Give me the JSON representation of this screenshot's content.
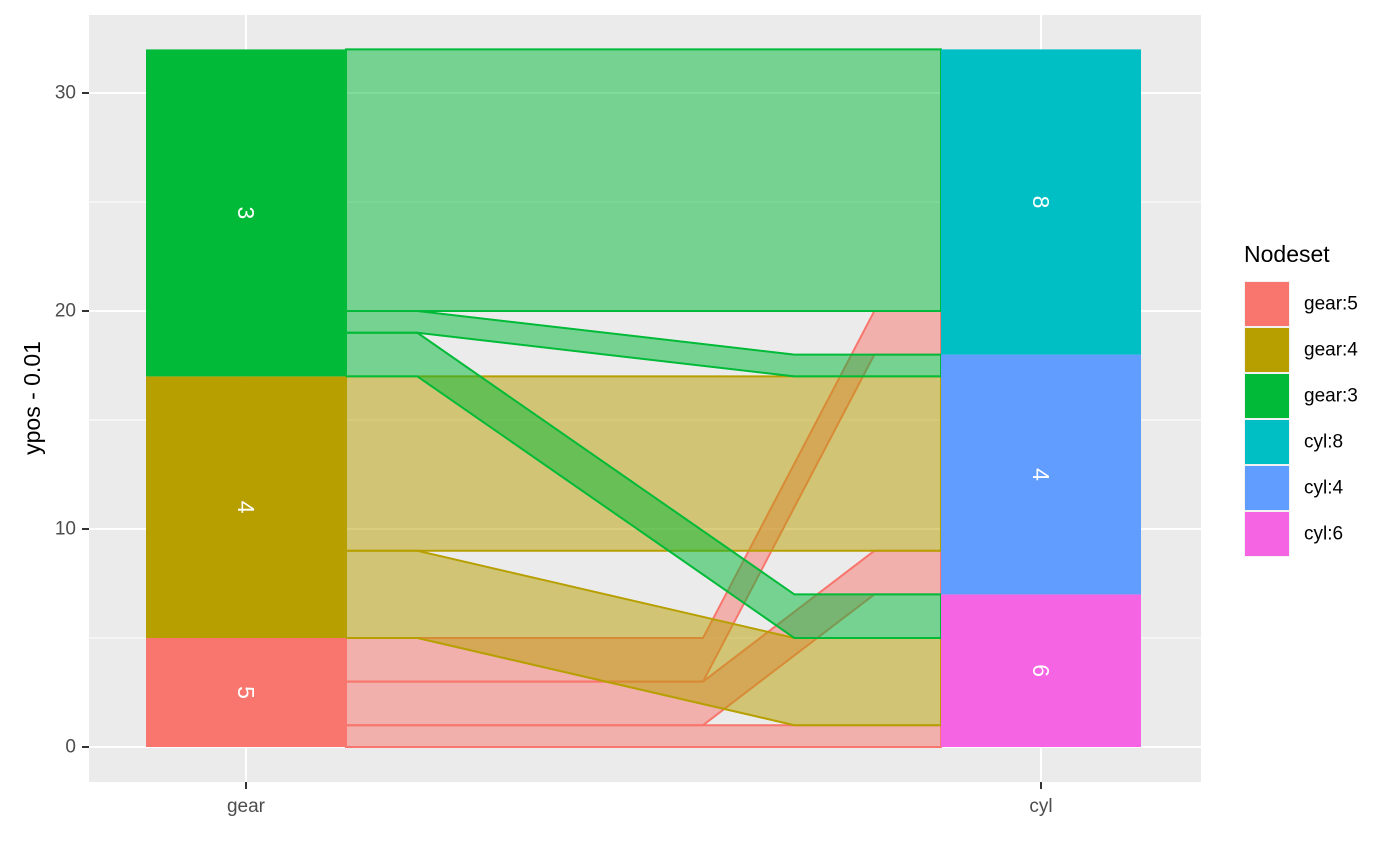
{
  "chart_data": {
    "type": "alluvial",
    "xlabel": "",
    "ylabel": "ypos - 0.01",
    "axes": [
      "gear",
      "cyl"
    ],
    "ylim": [
      -0.6,
      32.6
    ],
    "yticks": [
      0,
      10,
      20,
      30
    ],
    "grid": true,
    "legend": {
      "title": "Nodeset",
      "placement": "right",
      "entries": [
        {
          "label": "gear:5",
          "color": "#F8766D"
        },
        {
          "label": "gear:4",
          "color": "#B79F00"
        },
        {
          "label": "gear:3",
          "color": "#00BA38"
        },
        {
          "label": "cyl:8",
          "color": "#00BFC4"
        },
        {
          "label": "cyl:4",
          "color": "#619CFF"
        },
        {
          "label": "cyl:6",
          "color": "#F564E3"
        }
      ]
    },
    "nodes": [
      {
        "axis": "gear",
        "label": "5",
        "nodeset": "gear:5",
        "ymin": 0,
        "ymax": 5,
        "color": "#F8766D"
      },
      {
        "axis": "gear",
        "label": "4",
        "nodeset": "gear:4",
        "ymin": 5,
        "ymax": 17,
        "color": "#B79F00"
      },
      {
        "axis": "gear",
        "label": "3",
        "nodeset": "gear:3",
        "ymin": 17,
        "ymax": 32,
        "color": "#00BA38"
      },
      {
        "axis": "cyl",
        "label": "6",
        "nodeset": "cyl:6",
        "ymin": 0,
        "ymax": 7,
        "color": "#F564E3"
      },
      {
        "axis": "cyl",
        "label": "4",
        "nodeset": "cyl:4",
        "ymin": 7,
        "ymax": 18,
        "color": "#619CFF"
      },
      {
        "axis": "cyl",
        "label": "8",
        "nodeset": "cyl:8",
        "ymin": 18,
        "ymax": 32,
        "color": "#00BFC4"
      }
    ],
    "flows": [
      {
        "from": "gear:5",
        "to": "cyl:6",
        "value": 1,
        "from_y": [
          0,
          1
        ],
        "to_y": [
          0,
          1
        ]
      },
      {
        "from": "gear:5",
        "to": "cyl:4",
        "value": 2,
        "from_y": [
          1,
          3
        ],
        "to_y": [
          7,
          9
        ]
      },
      {
        "from": "gear:5",
        "to": "cyl:8",
        "value": 2,
        "from_y": [
          3,
          5
        ],
        "to_y": [
          18,
          20
        ]
      },
      {
        "from": "gear:4",
        "to": "cyl:6",
        "value": 4,
        "from_y": [
          5,
          9
        ],
        "to_y": [
          1,
          5
        ]
      },
      {
        "from": "gear:4",
        "to": "cyl:4",
        "value": 8,
        "from_y": [
          9,
          17
        ],
        "to_y": [
          9,
          17
        ]
      },
      {
        "from": "gear:3",
        "to": "cyl:6",
        "value": 2,
        "from_y": [
          17,
          19
        ],
        "to_y": [
          5,
          7
        ]
      },
      {
        "from": "gear:3",
        "to": "cyl:4",
        "value": 1,
        "from_y": [
          19,
          20
        ],
        "to_y": [
          17,
          18
        ]
      },
      {
        "from": "gear:3",
        "to": "cyl:8",
        "value": 12,
        "from_y": [
          20,
          32
        ],
        "to_y": [
          20,
          32
        ]
      }
    ]
  }
}
